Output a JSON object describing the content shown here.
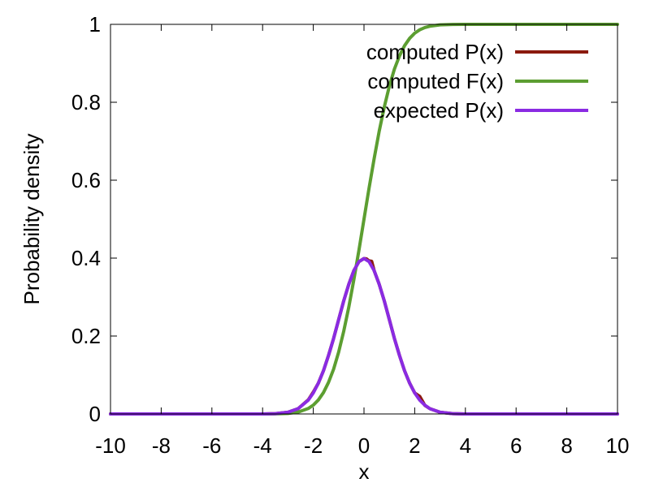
{
  "chart_data": {
    "type": "line",
    "xlabel": "x",
    "ylabel": "Probability density",
    "xlim": [
      -10,
      10
    ],
    "ylim": [
      0,
      1
    ],
    "xticks": [
      "-10",
      "-8",
      "-6",
      "-4",
      "-2",
      "0",
      "2",
      "4",
      "6",
      "8",
      "10"
    ],
    "yticks": [
      "0",
      "0.2",
      "0.4",
      "0.6",
      "0.8",
      "1"
    ],
    "grid": false,
    "legend_position": "top-right",
    "series": [
      {
        "name": "computed P(x)",
        "color": "#8b1a0e",
        "x": [
          -10,
          -5,
          -4,
          -3.5,
          -3,
          -2.6,
          -2.2,
          -2.0,
          -1.8,
          -1.6,
          -1.4,
          -1.2,
          -1.0,
          -0.8,
          -0.6,
          -0.4,
          -0.2,
          0,
          0.1,
          0.2,
          0.3,
          0.4,
          0.6,
          0.8,
          1.0,
          1.2,
          1.4,
          1.6,
          1.8,
          2.0,
          2.2,
          2.4,
          2.6,
          3.0,
          3.5,
          4,
          5,
          10
        ],
        "y": [
          0,
          0,
          0.0001,
          0.0009,
          0.0044,
          0.0136,
          0.036,
          0.056,
          0.079,
          0.111,
          0.15,
          0.194,
          0.242,
          0.29,
          0.333,
          0.368,
          0.391,
          0.399,
          0.398,
          0.393,
          0.392,
          0.368,
          0.333,
          0.29,
          0.242,
          0.194,
          0.15,
          0.111,
          0.079,
          0.054,
          0.045,
          0.022,
          0.0136,
          0.0044,
          0.0009,
          0.0001,
          0,
          0
        ]
      },
      {
        "name": "computed F(x)",
        "color": "#5c9e31",
        "x": [
          -10,
          -5,
          -4,
          -3.5,
          -3,
          -2.6,
          -2.2,
          -2.0,
          -1.8,
          -1.6,
          -1.4,
          -1.2,
          -1.0,
          -0.8,
          -0.6,
          -0.4,
          -0.2,
          0,
          0.2,
          0.4,
          0.6,
          0.8,
          1.0,
          1.2,
          1.4,
          1.6,
          1.8,
          2.0,
          2.2,
          2.4,
          2.6,
          3.0,
          3.5,
          4,
          5,
          10
        ],
        "y": [
          0,
          0,
          3e-05,
          0.0002,
          0.0013,
          0.0047,
          0.0139,
          0.0228,
          0.0359,
          0.0548,
          0.0808,
          0.1151,
          0.1587,
          0.2119,
          0.2743,
          0.3446,
          0.4207,
          0.5,
          0.5793,
          0.6554,
          0.7257,
          0.7881,
          0.8413,
          0.8849,
          0.9192,
          0.9452,
          0.9641,
          0.9772,
          0.9861,
          0.9918,
          0.9953,
          0.9987,
          0.9998,
          0.99997,
          1,
          1
        ]
      },
      {
        "name": "expected P(x)",
        "color": "#8a2be2",
        "x": [
          -10,
          -5,
          -4,
          -3.5,
          -3,
          -2.6,
          -2.2,
          -2.0,
          -1.8,
          -1.6,
          -1.4,
          -1.2,
          -1.0,
          -0.8,
          -0.6,
          -0.4,
          -0.2,
          0,
          0.2,
          0.4,
          0.6,
          0.8,
          1.0,
          1.2,
          1.4,
          1.6,
          1.8,
          2.0,
          2.2,
          2.4,
          2.6,
          3.0,
          3.5,
          4,
          5,
          10
        ],
        "y": [
          0,
          1.5e-06,
          0.0001,
          0.0009,
          0.0044,
          0.0136,
          0.0355,
          0.054,
          0.079,
          0.111,
          0.15,
          0.194,
          0.242,
          0.29,
          0.333,
          0.368,
          0.391,
          0.399,
          0.391,
          0.368,
          0.333,
          0.29,
          0.242,
          0.194,
          0.15,
          0.111,
          0.079,
          0.054,
          0.0355,
          0.0224,
          0.0136,
          0.0044,
          0.0009,
          0.0001,
          1.5e-06,
          0
        ]
      }
    ]
  }
}
